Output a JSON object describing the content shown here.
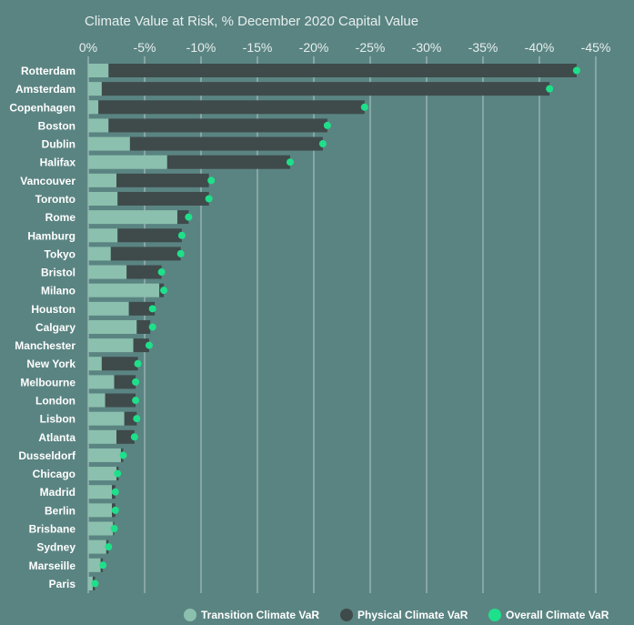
{
  "chart_data": {
    "type": "bar",
    "title": "Climate Value at Risk, % December 2020 Capital Value",
    "xlim": [
      0,
      -45
    ],
    "xticks": [
      0,
      -5,
      -10,
      -15,
      -20,
      -25,
      -30,
      -35,
      -40,
      -45
    ],
    "xtick_labels": [
      "0%",
      "-5%",
      "-10%",
      "-15%",
      "-20%",
      "-25%",
      "-30%",
      "-35%",
      "-40%",
      "-45%"
    ],
    "grid": true,
    "legend_position": "bottom-right",
    "categories": [
      "Rotterdam",
      "Amsterdam",
      "Copenhagen",
      "Boston",
      "Dublin",
      "Halifax",
      "Vancouver",
      "Toronto",
      "Rome",
      "Hamburg",
      "Tokyo",
      "Bristol",
      "Milano",
      "Houston",
      "Calgary",
      "Manchester",
      "New York",
      "Melbourne",
      "London",
      "Lisbon",
      "Atlanta",
      "Dusseldorf",
      "Chicago",
      "Madrid",
      "Berlin",
      "Brisbane",
      "Sydney",
      "Marseille",
      "Paris"
    ],
    "series": [
      {
        "name": "Transition Climate VaR",
        "color": "#8cc0ae",
        "values": [
          -1.8,
          -1.2,
          -0.9,
          -1.8,
          -3.7,
          -7.0,
          -2.5,
          -2.6,
          -7.9,
          -2.6,
          -2.0,
          -3.4,
          -6.3,
          -3.6,
          -4.3,
          -4.0,
          -1.2,
          -2.3,
          -1.5,
          -3.2,
          -2.5,
          -2.9,
          -2.5,
          -2.1,
          -2.1,
          -2.2,
          -1.6,
          -1.1,
          -0.4
        ]
      },
      {
        "name": "Physical Climate VaR",
        "color": "#3f4a4b",
        "values": [
          -41.5,
          -39.7,
          -23.6,
          -19.4,
          -17.1,
          -10.9,
          -8.2,
          -8.1,
          -1.0,
          -5.7,
          -6.2,
          -3.1,
          -0.4,
          -2.3,
          -1.2,
          -1.4,
          -3.2,
          -1.9,
          -2.7,
          -1.1,
          -1.6,
          -0.2,
          -0.2,
          -0.3,
          -0.3,
          -0.1,
          -0.2,
          -0.2,
          -0.2
        ]
      },
      {
        "name": "Overall Climate VaR",
        "color": "#1fe08a",
        "values": [
          -43.3,
          -40.9,
          -24.5,
          -21.2,
          -20.8,
          -17.9,
          -10.9,
          -10.7,
          -8.9,
          -8.3,
          -8.2,
          -6.5,
          -6.7,
          -5.7,
          -5.7,
          -5.4,
          -4.4,
          -4.2,
          -4.2,
          -4.3,
          -4.1,
          -3.1,
          -2.6,
          -2.4,
          -2.4,
          -2.3,
          -1.8,
          -1.3,
          -0.6
        ]
      }
    ]
  }
}
